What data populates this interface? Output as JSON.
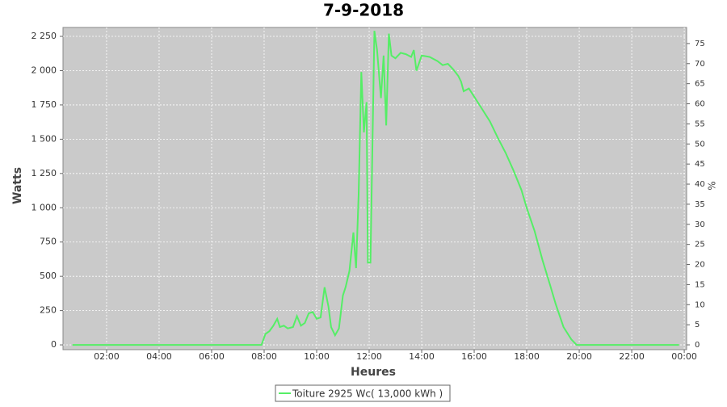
{
  "chart_data": {
    "type": "line",
    "title": "7-9-2018",
    "x_label": "Heures",
    "y_label": "Watts",
    "y2_label": "%",
    "x": [
      0.7,
      2,
      4,
      6,
      7.9,
      8.05,
      8.2,
      8.35,
      8.5,
      8.6,
      8.75,
      8.9,
      9.1,
      9.25,
      9.4,
      9.55,
      9.7,
      9.85,
      10.0,
      10.15,
      10.3,
      10.45,
      10.55,
      10.7,
      10.85,
      11.0,
      11.1,
      11.25,
      11.4,
      11.5,
      11.6,
      11.7,
      11.8,
      11.9,
      11.95,
      12.05,
      12.2,
      12.3,
      12.45,
      12.55,
      12.65,
      12.75,
      12.85,
      13.0,
      13.2,
      13.4,
      13.6,
      13.7,
      13.8,
      14.0,
      14.3,
      14.6,
      14.8,
      15.0,
      15.2,
      15.4,
      15.5,
      15.6,
      15.8,
      16.0,
      16.3,
      16.6,
      16.9,
      17.2,
      17.5,
      17.8,
      18.0,
      18.3,
      18.6,
      18.9,
      19.1,
      19.4,
      19.7,
      19.9,
      20.2,
      21,
      22,
      23,
      23.8
    ],
    "series": [
      {
        "name": "Toiture 2925 Wc( 13,000 kWh )",
        "color": "#55ee66",
        "values": [
          0,
          0,
          0,
          0,
          0,
          80,
          100,
          140,
          190,
          130,
          140,
          120,
          130,
          210,
          140,
          160,
          230,
          240,
          190,
          200,
          420,
          280,
          130,
          70,
          120,
          360,
          420,
          540,
          820,
          560,
          1100,
          1990,
          1550,
          1770,
          600,
          600,
          2290,
          2150,
          1800,
          2110,
          1600,
          2270,
          2110,
          2090,
          2130,
          2120,
          2100,
          2150,
          2000,
          2110,
          2100,
          2070,
          2040,
          2050,
          2010,
          1960,
          1920,
          1850,
          1870,
          1810,
          1720,
          1630,
          1510,
          1400,
          1270,
          1130,
          1000,
          830,
          620,
          430,
          300,
          130,
          40,
          0,
          0,
          0,
          0,
          0,
          0
        ]
      }
    ],
    "xlim": [
      0.34,
      24.09
    ],
    "xticks": [
      {
        "value": 2,
        "label": "02:00"
      },
      {
        "value": 4,
        "label": "04:00"
      },
      {
        "value": 6,
        "label": "06:00"
      },
      {
        "value": 8,
        "label": "08:00"
      },
      {
        "value": 10,
        "label": "10:00"
      },
      {
        "value": 12,
        "label": "12:00"
      },
      {
        "value": 14,
        "label": "14:00"
      },
      {
        "value": 16,
        "label": "16:00"
      },
      {
        "value": 18,
        "label": "18:00"
      },
      {
        "value": 20,
        "label": "20:00"
      },
      {
        "value": 22,
        "label": "22:00"
      },
      {
        "value": 24,
        "label": "00:00"
      }
    ],
    "ylim": [
      -35,
      2315
    ],
    "yticks": [
      0,
      250,
      500,
      750,
      {
        "value": 1000,
        "label": "1 000"
      },
      {
        "value": 1250,
        "label": "1 250"
      },
      {
        "value": 1500,
        "label": "1 500"
      },
      {
        "value": 1750,
        "label": "1 750"
      },
      {
        "value": 2000,
        "label": "2 000"
      },
      {
        "value": 2250,
        "label": "2 250"
      }
    ],
    "y2lim": [
      -1.2,
      79
    ],
    "y2ticks": [
      0,
      5,
      10,
      15,
      20,
      25,
      30,
      35,
      40,
      45,
      50,
      55,
      60,
      65,
      70,
      75
    ],
    "grid": true,
    "legend": "bottom",
    "plot_background": "#cacaca"
  }
}
